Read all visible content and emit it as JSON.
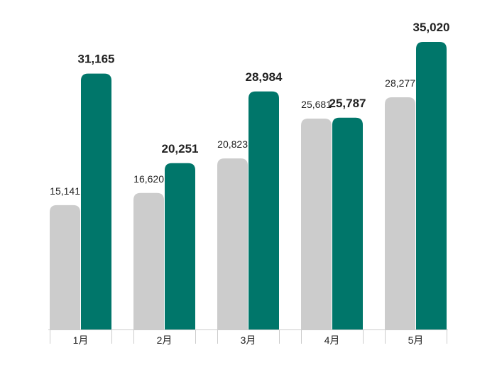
{
  "chart_data": {
    "type": "bar",
    "categories": [
      "1月",
      "2月",
      "3月",
      "4月",
      "5月"
    ],
    "series": [
      {
        "values": [
          15141,
          16620,
          20823,
          25681,
          28277
        ],
        "value_labels": [
          "15,141",
          "16,620",
          "20,823",
          "25,681",
          "28,277"
        ],
        "color": "#cccccc"
      },
      {
        "values": [
          31165,
          20251,
          28984,
          25787,
          35020
        ],
        "value_labels": [
          "31,165",
          "20,251",
          "28,984",
          "25,787",
          "35,020"
        ],
        "color": "#00766a"
      }
    ],
    "ylim": [
      0,
      40000
    ],
    "grid": false,
    "legend": "none",
    "axis_color": "#cccccc",
    "label_color": "#222222"
  }
}
